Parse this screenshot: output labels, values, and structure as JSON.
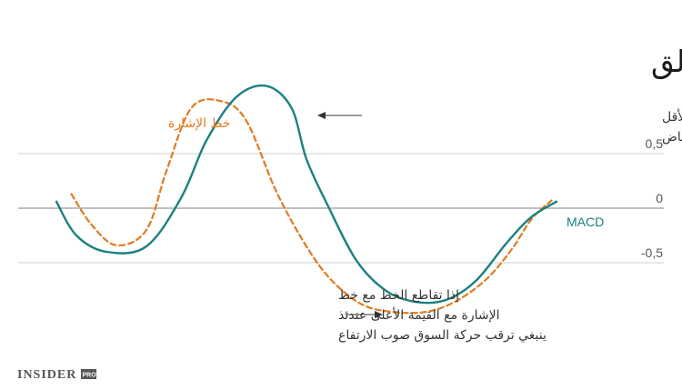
{
  "chart_data": {
    "type": "line",
    "title": "تقارب وتباعد المتوسط المتنزلق",
    "yticks": [
      "0,5",
      "0",
      "-0,5"
    ],
    "ylim": [
      -1,
      1.2
    ],
    "grid": true,
    "series": [
      {
        "name": "MACD",
        "color": "#1b8082",
        "dashed": false,
        "x": [
          0,
          0.04,
          0.1,
          0.18,
          0.25,
          0.3,
          0.36,
          0.42,
          0.47,
          0.5,
          0.54,
          0.6,
          0.66,
          0.72,
          0.78,
          0.84,
          0.9,
          0.95,
          1
        ],
        "y": [
          0.06,
          -0.25,
          -0.4,
          -0.35,
          0.1,
          0.62,
          1.02,
          1.12,
          0.92,
          0.45,
          0.05,
          -0.48,
          -0.76,
          -0.86,
          -0.84,
          -0.66,
          -0.32,
          -0.08,
          0.06
        ]
      },
      {
        "name": "خط الإشارة",
        "color": "#e07b20",
        "dashed": true,
        "x": [
          0.03,
          0.07,
          0.12,
          0.18,
          0.22,
          0.27,
          0.33,
          0.38,
          0.44,
          0.5,
          0.55,
          0.61,
          0.67,
          0.74,
          0.8,
          0.86,
          0.91,
          0.95,
          0.99
        ],
        "y": [
          0.13,
          -0.15,
          -0.34,
          -0.2,
          0.34,
          0.92,
          0.98,
          0.8,
          0.15,
          -0.35,
          -0.66,
          -0.88,
          -0.95,
          -0.95,
          -0.85,
          -0.65,
          -0.38,
          -0.1,
          0.07
        ]
      }
    ],
    "annotations": {
      "top": [
        "إذا تقاطع الخط مع خط الإشارة مع القيمة الأقل",
        "عندئذ ينبغي ترقب حركة السوق صوب الانخفاض"
      ],
      "bottom": [
        "إذا تقاطع الخط مع خط",
        "الإشارة مع القيمة الأعلى عندئذ",
        "ينبغي ترقب حركة السوق صوب الارتفاع"
      ]
    }
  },
  "logo": {
    "main": "INSIDER",
    "sub": "PRO"
  }
}
